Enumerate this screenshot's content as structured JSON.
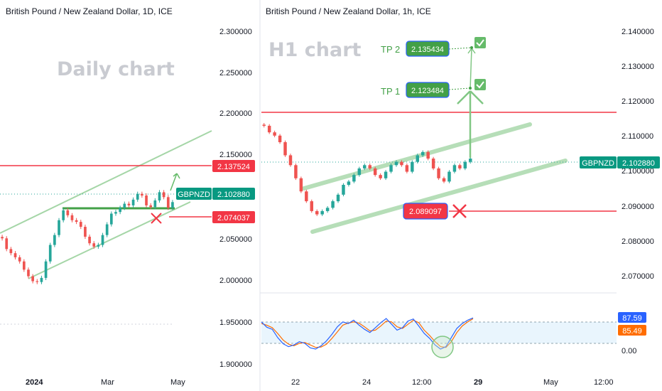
{
  "left_chart": {
    "title": "British Pound / New Zealand Dollar, 1D, ICE",
    "watermark": "Daily chart",
    "y_ticks": [
      "2.300000",
      "2.250000",
      "2.200000",
      "2.150000",
      "2.050000",
      "2.000000",
      "1.950000",
      "1.900000"
    ],
    "x_ticks": [
      "2024",
      "Mar",
      "May"
    ],
    "resistance_label": "2.137524",
    "symbol_label": "GBPNZD",
    "price_label": "2.102880",
    "stop_label": "2.074037"
  },
  "right_chart": {
    "title": "British Pound / New Zealand Dollar, 1h, ICE",
    "watermark": "H1 chart",
    "y_ticks": [
      "2.140000",
      "2.130000",
      "2.120000",
      "2.110000",
      "2.100000",
      "2.090000",
      "2.080000",
      "2.070000"
    ],
    "x_ticks": [
      "22",
      "24",
      "12:00",
      "29",
      "May",
      "12:00"
    ],
    "tp2_name": "TP 2",
    "tp2_value": "2.135434",
    "tp1_name": "TP 1",
    "tp1_value": "2.123484",
    "stop_value": "2.089097",
    "symbol_label": "GBPNZD",
    "price_label": "2.102880",
    "osc_value_1": "87.59",
    "osc_value_2": "85.49",
    "osc_tick": "0.00"
  },
  "colors": {
    "up": "#26a69a",
    "down": "#ef5350",
    "channel": "#a5d6a7",
    "resistance": "#f23645",
    "target": "#43a047",
    "oscillator_k": "#2962ff",
    "oscillator_d": "#ff6d00",
    "symbol_badge": "#089981"
  },
  "chart_data": [
    {
      "type": "candlestick",
      "title": "British Pound / New Zealand Dollar, 1D, ICE",
      "x_ticks": [
        "2024",
        "Mar",
        "May"
      ],
      "ylim": [
        1.89,
        2.33
      ],
      "levels": {
        "resistance": 2.137524,
        "current": 2.10288,
        "stop": 2.074037
      },
      "series": [
        {
          "values": [
            2.058,
            2.045,
            2.04,
            2.035,
            2.03,
            2.02,
            2.012,
            2.006,
            2.005,
            2.01,
            2.03,
            2.05,
            2.062,
            2.08,
            2.092,
            2.086,
            2.08,
            2.078,
            2.072,
            2.06,
            2.052,
            2.048,
            2.05,
            2.062,
            2.075,
            2.088,
            2.09,
            2.095,
            2.1,
            2.098,
            2.105,
            2.112,
            2.11,
            2.098,
            2.096,
            2.104,
            2.114,
            2.108,
            2.095,
            2.102
          ]
        }
      ]
    },
    {
      "type": "candlestick",
      "title": "British Pound / New Zealand Dollar, 1h, ICE",
      "x_ticks": [
        "22",
        "24",
        "12:00",
        "29",
        "May",
        "12:00"
      ],
      "ylim": [
        2.0625,
        2.147
      ],
      "levels": {
        "resistance": 2.1165,
        "tp1": 2.123484,
        "tp2": 2.135434,
        "current": 2.10288,
        "stop": 2.089097
      },
      "series": [
        {
          "values": [
            2.113,
            2.111,
            2.11,
            2.108,
            2.104,
            2.101,
            2.097,
            2.093,
            2.09,
            2.087,
            2.086,
            2.087,
            2.088,
            2.09,
            2.092,
            2.095,
            2.096,
            2.098,
            2.1,
            2.101,
            2.1,
            2.098,
            2.097,
            2.099,
            2.101,
            2.102,
            2.101,
            2.099,
            2.102,
            2.104,
            2.105,
            2.103,
            2.1,
            2.097,
            2.096,
            2.099,
            2.101,
            2.1,
            2.102,
            2.103
          ]
        }
      ]
    },
    {
      "type": "line",
      "title": "",
      "oscillator": true,
      "ylim": [
        0,
        100
      ],
      "series": [
        {
          "values": [
            78,
            65,
            60,
            40,
            25,
            18,
            22,
            30,
            26,
            15,
            12,
            20,
            32,
            48,
            66,
            78,
            74,
            82,
            70,
            60,
            52,
            64,
            76,
            86,
            72,
            58,
            64,
            80,
            85,
            68,
            50,
            38,
            22,
            12,
            18,
            40,
            62,
            74,
            82,
            87.59
          ]
        },
        {
          "values": [
            74,
            70,
            64,
            50,
            34,
            24,
            20,
            26,
            28,
            22,
            16,
            17,
            24,
            38,
            54,
            70,
            75,
            78,
            75,
            66,
            56,
            58,
            68,
            80,
            78,
            66,
            62,
            72,
            82,
            76,
            58,
            45,
            30,
            18,
            16,
            30,
            52,
            68,
            78,
            85.49
          ]
        }
      ]
    }
  ]
}
